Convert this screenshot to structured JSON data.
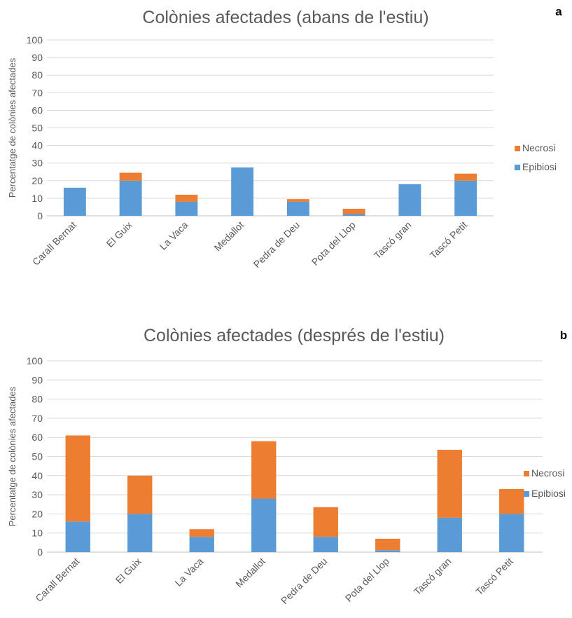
{
  "chart_data": [
    {
      "panel_label": "a",
      "type": "bar",
      "stacked": true,
      "title": "Colònies afectades (abans de l'estiu)",
      "ylabel": "Percentatge de colònies afectades",
      "xlabel": "",
      "ylim": [
        0,
        100
      ],
      "yticks": [
        0,
        10,
        20,
        30,
        40,
        50,
        60,
        70,
        80,
        90,
        100
      ],
      "grid": true,
      "legend": "right",
      "categories": [
        "Carall Bernat",
        "El Guix",
        "La Vaca",
        "Medallot",
        "Pedra de Deu",
        "Pota del Llop",
        "Tascó gran",
        "Tascó Petit"
      ],
      "series": [
        {
          "name": "Epibiosi",
          "color": "#5b9bd5",
          "values": [
            16,
            20,
            8,
            27.5,
            8,
            1,
            18,
            20
          ]
        },
        {
          "name": "Necrosi",
          "color": "#ed7d31",
          "values": [
            0,
            4.5,
            4,
            0,
            1.5,
            3,
            0,
            4
          ]
        }
      ]
    },
    {
      "panel_label": "b",
      "type": "bar",
      "stacked": true,
      "title": "Colònies afectades (després de l'estiu)",
      "ylabel": "Percentatge de colònies afectades",
      "xlabel": "",
      "ylim": [
        0,
        100
      ],
      "yticks": [
        0,
        10,
        20,
        30,
        40,
        50,
        60,
        70,
        80,
        90,
        100
      ],
      "grid": true,
      "legend": "right",
      "categories": [
        "Carall Bernat",
        "El Guix",
        "La Vaca",
        "Medallot",
        "Pedra de Deu",
        "Pota del Llop",
        "Tascó gran",
        "Tascó Petit"
      ],
      "series": [
        {
          "name": "Epibiosi",
          "color": "#5b9bd5",
          "values": [
            16,
            20,
            8,
            28,
            8,
            1,
            18,
            20
          ]
        },
        {
          "name": "Necrosi",
          "color": "#ed7d31",
          "values": [
            45,
            20,
            4,
            30,
            15.5,
            6,
            35.5,
            13
          ]
        }
      ]
    }
  ]
}
